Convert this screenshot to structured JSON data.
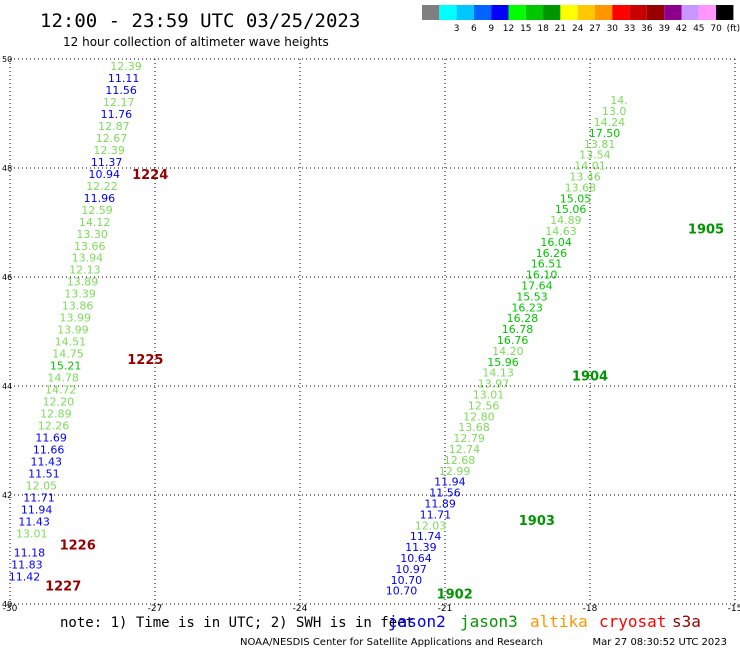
{
  "header": {
    "title": "12:00 - 23:59 UTC 03/25/2023",
    "subtitle": "12 hour collection of altimeter wave heights"
  },
  "legend": {
    "bins": [
      {
        "label": "",
        "color": "#7f7f7f"
      },
      {
        "label": "3",
        "color": "#00ffff"
      },
      {
        "label": "6",
        "color": "#00c8ff"
      },
      {
        "label": "9",
        "color": "#0064ff"
      },
      {
        "label": "12",
        "color": "#0000ff"
      },
      {
        "label": "15",
        "color": "#00ff00"
      },
      {
        "label": "18",
        "color": "#00c800"
      },
      {
        "label": "21",
        "color": "#009600"
      },
      {
        "label": "24",
        "color": "#ffff00"
      },
      {
        "label": "27",
        "color": "#ffc800"
      },
      {
        "label": "30",
        "color": "#ff9600"
      },
      {
        "label": "33",
        "color": "#ff0000"
      },
      {
        "label": "36",
        "color": "#c80000"
      },
      {
        "label": "39",
        "color": "#960000"
      },
      {
        "label": "42",
        "color": "#8c008c"
      },
      {
        "label": "45",
        "color": "#c896ff"
      },
      {
        "label": "70",
        "color": "#ff96ff"
      },
      {
        "label": "(ft)",
        "color": "#000000"
      }
    ]
  },
  "footer": {
    "note": "note:  1) Time is in UTC; 2) SWH is in feet",
    "credit": "NOAA/NESDIS Center for Satellite Applications and Research",
    "timestamp": "Mar 27 08:30:52 UTC 2023",
    "satellites": [
      {
        "name": "jason2",
        "color": "#0000ff"
      },
      {
        "name": "jason3",
        "color": "#009600"
      },
      {
        "name": "altika",
        "color": "#ff9600"
      },
      {
        "name": "cryosat",
        "color": "#ff0000"
      },
      {
        "name": "s3a",
        "color": "#960000"
      }
    ]
  },
  "chart_data": {
    "type": "scatter",
    "x_range": [
      -30,
      -15
    ],
    "y_range": [
      40,
      50
    ],
    "x_ticks": [
      "-30",
      "-27",
      "-24",
      "-21",
      "-18",
      "-15"
    ],
    "y_ticks": [
      "40",
      "42",
      "44",
      "46",
      "48",
      "50"
    ],
    "grid": true,
    "time_markers": [
      {
        "label": "1224",
        "lon": -27.1,
        "lat": 47.8,
        "color": "#960000"
      },
      {
        "label": "1225",
        "lon": -27.2,
        "lat": 44.4,
        "color": "#960000"
      },
      {
        "label": "1226",
        "lon": -28.6,
        "lat": 41.0,
        "color": "#960000"
      },
      {
        "label": "1227",
        "lon": -28.9,
        "lat": 40.25,
        "color": "#960000"
      },
      {
        "label": "1902",
        "lon": -20.8,
        "lat": 40.1,
        "color": "#009600"
      },
      {
        "label": "1903",
        "lon": -19.1,
        "lat": 41.45,
        "color": "#009600"
      },
      {
        "label": "1904",
        "lon": -18.0,
        "lat": 44.1,
        "color": "#009600"
      },
      {
        "label": "1905",
        "lon": -15.6,
        "lat": 46.8,
        "color": "#009600"
      }
    ],
    "series": [
      {
        "points": [
          {
            "lon": -27.6,
            "lat": 49.8,
            "value": "12.39",
            "color": "#7ddc5a"
          },
          {
            "lon": -27.65,
            "lat": 49.58,
            "value": "11.11",
            "color": "#0000ff"
          },
          {
            "lon": -27.7,
            "lat": 49.36,
            "value": "11.56",
            "color": "#0000ff"
          },
          {
            "lon": -27.75,
            "lat": 49.14,
            "value": "12.17",
            "color": "#7ddc5a"
          },
          {
            "lon": -27.8,
            "lat": 48.92,
            "value": "11.76",
            "color": "#0000ff"
          },
          {
            "lon": -27.85,
            "lat": 48.7,
            "value": "12.87",
            "color": "#7ddc5a"
          },
          {
            "lon": -27.9,
            "lat": 48.48,
            "value": "12.67",
            "color": "#7ddc5a"
          },
          {
            "lon": -27.95,
            "lat": 48.26,
            "value": "12.39",
            "color": "#7ddc5a"
          },
          {
            "lon": -28.0,
            "lat": 48.04,
            "value": "11.37",
            "color": "#0000ff"
          },
          {
            "lon": -28.05,
            "lat": 47.82,
            "value": "10.94",
            "color": "#0000ff"
          },
          {
            "lon": -28.1,
            "lat": 47.6,
            "value": "12.22",
            "color": "#7ddc5a"
          },
          {
            "lon": -28.15,
            "lat": 47.38,
            "value": "11.96",
            "color": "#0000ff"
          },
          {
            "lon": -28.2,
            "lat": 47.16,
            "value": "12.59",
            "color": "#7ddc5a"
          },
          {
            "lon": -28.25,
            "lat": 46.94,
            "value": "14.12",
            "color": "#7ddc5a"
          },
          {
            "lon": -28.3,
            "lat": 46.72,
            "value": "13.30",
            "color": "#7ddc5a"
          },
          {
            "lon": -28.35,
            "lat": 46.5,
            "value": "13.66",
            "color": "#7ddc5a"
          },
          {
            "lon": -28.4,
            "lat": 46.28,
            "value": "13.94",
            "color": "#7ddc5a"
          },
          {
            "lon": -28.45,
            "lat": 46.06,
            "value": "12.13",
            "color": "#7ddc5a"
          },
          {
            "lon": -28.5,
            "lat": 45.84,
            "value": "13.89",
            "color": "#7ddc5a"
          },
          {
            "lon": -28.55,
            "lat": 45.62,
            "value": "13.39",
            "color": "#7ddc5a"
          },
          {
            "lon": -28.6,
            "lat": 45.4,
            "value": "13.86",
            "color": "#7ddc5a"
          },
          {
            "lon": -28.65,
            "lat": 45.18,
            "value": "13.99",
            "color": "#7ddc5a"
          },
          {
            "lon": -28.7,
            "lat": 44.96,
            "value": "13.99",
            "color": "#7ddc5a"
          },
          {
            "lon": -28.75,
            "lat": 44.74,
            "value": "14.51",
            "color": "#7ddc5a"
          },
          {
            "lon": -28.8,
            "lat": 44.52,
            "value": "14.75",
            "color": "#7ddc5a"
          },
          {
            "lon": -28.85,
            "lat": 44.3,
            "value": "15.21",
            "color": "#00c800"
          },
          {
            "lon": -28.9,
            "lat": 44.08,
            "value": "14.78",
            "color": "#7ddc5a"
          },
          {
            "lon": -28.95,
            "lat": 43.86,
            "value": "14.72",
            "color": "#7ddc5a"
          },
          {
            "lon": -29.0,
            "lat": 43.64,
            "value": "12.20",
            "color": "#7ddc5a"
          },
          {
            "lon": -29.05,
            "lat": 43.42,
            "value": "12.89",
            "color": "#7ddc5a"
          },
          {
            "lon": -29.1,
            "lat": 43.2,
            "value": "12.26",
            "color": "#7ddc5a"
          },
          {
            "lon": -29.15,
            "lat": 42.98,
            "value": "11.69",
            "color": "#0000ff"
          },
          {
            "lon": -29.2,
            "lat": 42.76,
            "value": "11.66",
            "color": "#0000ff"
          },
          {
            "lon": -29.25,
            "lat": 42.54,
            "value": "11.43",
            "color": "#0000ff"
          },
          {
            "lon": -29.3,
            "lat": 42.32,
            "value": "11.51",
            "color": "#0000ff"
          },
          {
            "lon": -29.35,
            "lat": 42.1,
            "value": "12.05",
            "color": "#7ddc5a"
          },
          {
            "lon": -29.4,
            "lat": 41.88,
            "value": "11.71",
            "color": "#0000ff"
          },
          {
            "lon": -29.45,
            "lat": 41.66,
            "value": "11.94",
            "color": "#0000ff"
          },
          {
            "lon": -29.5,
            "lat": 41.44,
            "value": "11.43",
            "color": "#0000ff"
          },
          {
            "lon": -29.55,
            "lat": 41.22,
            "value": "13.01",
            "color": "#7ddc5a"
          },
          {
            "lon": -29.6,
            "lat": 40.87,
            "value": "11.18",
            "color": "#0000ff"
          },
          {
            "lon": -29.65,
            "lat": 40.65,
            "value": "11.83",
            "color": "#0000ff"
          },
          {
            "lon": -29.7,
            "lat": 40.43,
            "value": "11.42",
            "color": "#0000ff"
          }
        ]
      },
      {
        "points": [
          {
            "lon": -21.9,
            "lat": 40.17,
            "value": "10.70",
            "color": "#0000ff"
          },
          {
            "lon": -21.8,
            "lat": 40.37,
            "value": "10.70",
            "color": "#0000ff"
          },
          {
            "lon": -21.7,
            "lat": 40.57,
            "value": "10.97",
            "color": "#0000ff"
          },
          {
            "lon": -21.6,
            "lat": 40.77,
            "value": "10.64",
            "color": "#0000ff"
          },
          {
            "lon": -21.5,
            "lat": 40.97,
            "value": "11.39",
            "color": "#0000ff"
          },
          {
            "lon": -21.4,
            "lat": 41.17,
            "value": "11.74",
            "color": "#0000ff"
          },
          {
            "lon": -21.3,
            "lat": 41.37,
            "value": "12.03",
            "color": "#7ddc5a"
          },
          {
            "lon": -21.2,
            "lat": 41.57,
            "value": "11.71",
            "color": "#0000ff"
          },
          {
            "lon": -21.1,
            "lat": 41.77,
            "value": "11.89",
            "color": "#0000ff"
          },
          {
            "lon": -21.0,
            "lat": 41.97,
            "value": "11.56",
            "color": "#0000ff"
          },
          {
            "lon": -20.9,
            "lat": 42.17,
            "value": "11.94",
            "color": "#0000ff"
          },
          {
            "lon": -20.8,
            "lat": 42.37,
            "value": "12.99",
            "color": "#7ddc5a"
          },
          {
            "lon": -20.7,
            "lat": 42.57,
            "value": "12.68",
            "color": "#7ddc5a"
          },
          {
            "lon": -20.6,
            "lat": 42.77,
            "value": "12.74",
            "color": "#7ddc5a"
          },
          {
            "lon": -20.5,
            "lat": 42.97,
            "value": "12.79",
            "color": "#7ddc5a"
          },
          {
            "lon": -20.4,
            "lat": 43.17,
            "value": "13.68",
            "color": "#7ddc5a"
          },
          {
            "lon": -20.3,
            "lat": 43.37,
            "value": "12.80",
            "color": "#7ddc5a"
          },
          {
            "lon": -20.2,
            "lat": 43.57,
            "value": "12.56",
            "color": "#7ddc5a"
          },
          {
            "lon": -20.1,
            "lat": 43.77,
            "value": "13.01",
            "color": "#7ddc5a"
          },
          {
            "lon": -20.0,
            "lat": 43.97,
            "value": "13.97",
            "color": "#7ddc5a"
          },
          {
            "lon": -19.9,
            "lat": 44.17,
            "value": "14.13",
            "color": "#7ddc5a"
          },
          {
            "lon": -19.8,
            "lat": 44.37,
            "value": "15.96",
            "color": "#00c800"
          },
          {
            "lon": -19.7,
            "lat": 44.57,
            "value": "14.20",
            "color": "#7ddc5a"
          },
          {
            "lon": -19.6,
            "lat": 44.77,
            "value": "16.76",
            "color": "#00c800"
          },
          {
            "lon": -19.5,
            "lat": 44.97,
            "value": "16.78",
            "color": "#00c800"
          },
          {
            "lon": -19.4,
            "lat": 45.17,
            "value": "16.28",
            "color": "#00c800"
          },
          {
            "lon": -19.3,
            "lat": 45.37,
            "value": "16.23",
            "color": "#00c800"
          },
          {
            "lon": -19.2,
            "lat": 45.57,
            "value": "15.53",
            "color": "#00c800"
          },
          {
            "lon": -19.1,
            "lat": 45.77,
            "value": "17.64",
            "color": "#00c800"
          },
          {
            "lon": -19.0,
            "lat": 45.97,
            "value": "16.10",
            "color": "#00c800"
          },
          {
            "lon": -18.9,
            "lat": 46.17,
            "value": "16.51",
            "color": "#00c800"
          },
          {
            "lon": -18.8,
            "lat": 46.37,
            "value": "16.26",
            "color": "#00c800"
          },
          {
            "lon": -18.7,
            "lat": 46.57,
            "value": "16.04",
            "color": "#00c800"
          },
          {
            "lon": -18.6,
            "lat": 46.77,
            "value": "14.63",
            "color": "#7ddc5a"
          },
          {
            "lon": -18.5,
            "lat": 46.97,
            "value": "14.89",
            "color": "#7ddc5a"
          },
          {
            "lon": -18.4,
            "lat": 47.17,
            "value": "15.06",
            "color": "#00c800"
          },
          {
            "lon": -18.3,
            "lat": 47.37,
            "value": "15.05",
            "color": "#00c800"
          },
          {
            "lon": -18.2,
            "lat": 47.57,
            "value": "13.68",
            "color": "#7ddc5a"
          },
          {
            "lon": -18.1,
            "lat": 47.77,
            "value": "13.46",
            "color": "#7ddc5a"
          },
          {
            "lon": -18.0,
            "lat": 47.97,
            "value": "14.01",
            "color": "#7ddc5a"
          },
          {
            "lon": -17.9,
            "lat": 48.17,
            "value": "13.54",
            "color": "#7ddc5a"
          },
          {
            "lon": -17.8,
            "lat": 48.37,
            "value": "13.81",
            "color": "#7ddc5a"
          },
          {
            "lon": -17.7,
            "lat": 48.57,
            "value": "17.50",
            "color": "#00c800"
          },
          {
            "lon": -17.6,
            "lat": 48.77,
            "value": "14.24",
            "color": "#7ddc5a"
          },
          {
            "lon": -17.5,
            "lat": 48.97,
            "value": "13.0",
            "color": "#7ddc5a"
          },
          {
            "lon": -17.4,
            "lat": 49.17,
            "value": "14.",
            "color": "#7ddc5a"
          }
        ]
      }
    ]
  }
}
